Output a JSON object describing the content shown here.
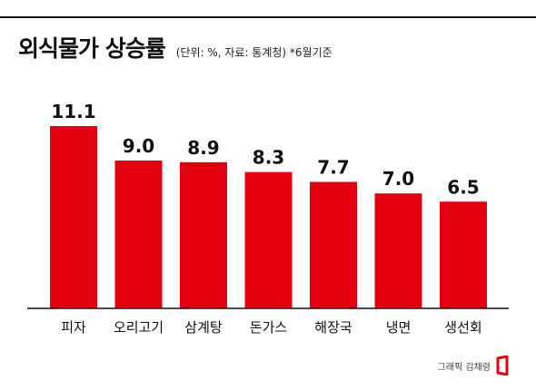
{
  "header": {
    "title": "외식물가 상승률",
    "subtitle": "(단위: %, 자료: 통계청) *6월기준"
  },
  "footer": {
    "credit": "그래픽 김채령"
  },
  "colors": {
    "bar": "#e3000f",
    "baseline": "#111111",
    "text": "#111111"
  },
  "chart_data": {
    "type": "bar",
    "categories": [
      "피자",
      "오리고기",
      "삼계탕",
      "돈가스",
      "해장국",
      "냉면",
      "생선회"
    ],
    "values": [
      11.1,
      9.0,
      8.9,
      8.3,
      7.7,
      7.0,
      6.5
    ],
    "value_labels": [
      "11.1",
      "9.0",
      "8.9",
      "8.3",
      "7.7",
      "7.0",
      "6.5"
    ],
    "title": "외식물가 상승률",
    "xlabel": "",
    "ylabel": "",
    "ylim": [
      0,
      11.1
    ],
    "grid": false,
    "legend": "none"
  }
}
